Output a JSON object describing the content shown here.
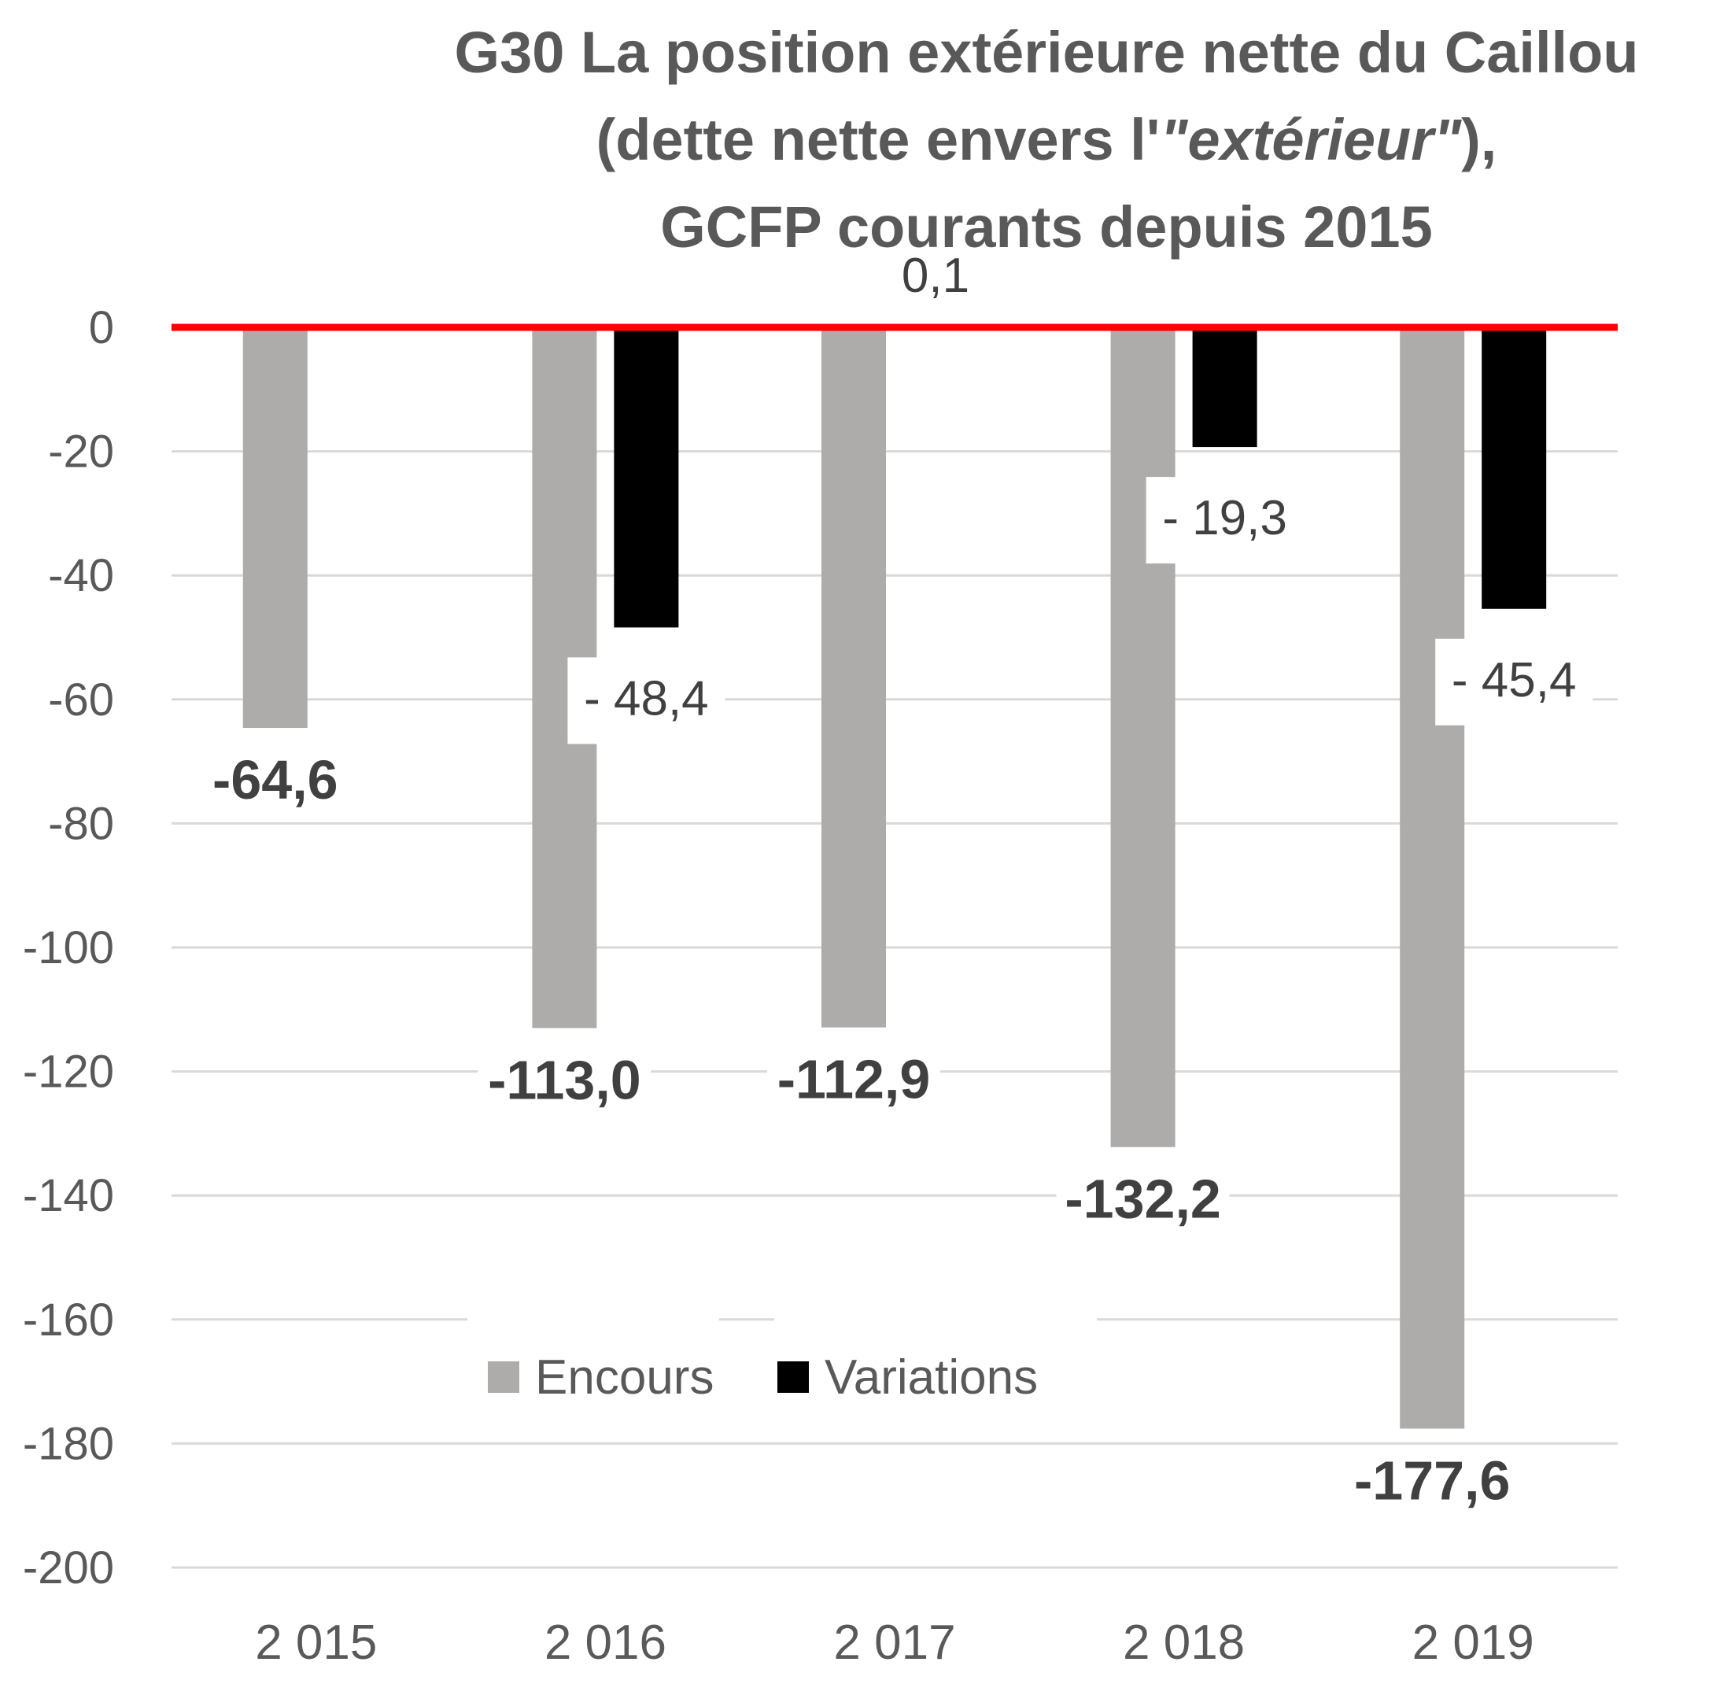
{
  "chart_data": {
    "type": "bar",
    "title_lines": [
      "G30  La position extérieure nette du Caillou",
      "(dette nette envers l'",
      "\"extérieur\"",
      "),",
      "GCFP courants depuis 2015"
    ],
    "categories": [
      "2 015",
      "2 016",
      "2 017",
      "2 018",
      "2 019"
    ],
    "series": [
      {
        "name": "Encours",
        "color": "#AEABAB",
        "values": [
          -64.6,
          -113.0,
          -112.9,
          -132.2,
          -177.6
        ],
        "labels": [
          "-64,6",
          "-113,0",
          "-112,9",
          "-132,2",
          "-177,6"
        ]
      },
      {
        "name": "Variations",
        "color": "#000000",
        "values": [
          null,
          -48.4,
          0.1,
          -19.3,
          -45.4
        ],
        "labels": [
          "",
          "- 48,4",
          "0,1",
          "- 19,3",
          "- 45,4"
        ]
      }
    ],
    "yticks": [
      0,
      -20,
      -40,
      -60,
      -80,
      -100,
      -120,
      -140,
      -160,
      -180,
      -200
    ],
    "ylim": [
      -200,
      0
    ],
    "zero_line_color": "#FF0000",
    "grid": true,
    "legend_position": "bottom-center",
    "xlabel": "",
    "ylabel": ""
  }
}
